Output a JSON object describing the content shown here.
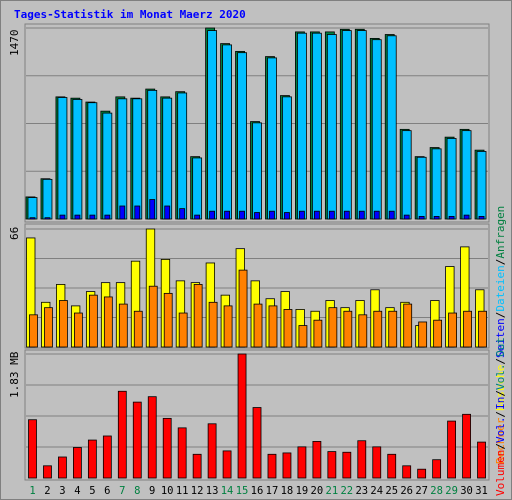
{
  "title": "Tages-Statistik im Monat Maerz 2020",
  "colors": {
    "anfragen": "#008040",
    "dateien": "#00c0ff",
    "seiten": "#0000ff",
    "besuche": "#ffff00",
    "rechner": "#ff8000",
    "volumen": "#ff0000",
    "vol_in": "#0000ff",
    "vol_out": "#008080",
    "weekend_label": "#008040",
    "weekday_label": "#000000"
  },
  "chart_data": [
    {
      "type": "bar",
      "panel": "requests",
      "y_tick_label": "1470",
      "ylim": [
        0,
        1470
      ],
      "x": [
        "1",
        "2",
        "3",
        "4",
        "5",
        "6",
        "7",
        "8",
        "9",
        "10",
        "11",
        "12",
        "13",
        "14",
        "15",
        "16",
        "17",
        "18",
        "19",
        "20",
        "21",
        "22",
        "23",
        "24",
        "25",
        "26",
        "27",
        "28",
        "29",
        "30",
        "31"
      ],
      "weekend_days": [
        1,
        7,
        8,
        14,
        15,
        21,
        22,
        28,
        29
      ],
      "side_labels": [
        "Anfragen",
        "/",
        "Dateien",
        "/",
        "Seiten",
        "/",
        "Besuche",
        "/",
        "Rechner"
      ],
      "series": [
        {
          "name": "Anfragen",
          "values": [
            170,
            310,
            940,
            930,
            900,
            830,
            940,
            930,
            1000,
            940,
            980,
            480,
            1470,
            1350,
            1290,
            750,
            1250,
            950,
            1440,
            1440,
            1440,
            1460,
            1460,
            1390,
            1420,
            690,
            480,
            550,
            630,
            690,
            530
          ]
        },
        {
          "name": "Dateien",
          "values": [
            165,
            305,
            935,
            920,
            895,
            815,
            925,
            925,
            990,
            930,
            970,
            470,
            1450,
            1340,
            1280,
            740,
            1240,
            940,
            1430,
            1430,
            1420,
            1450,
            1450,
            1380,
            1410,
            680,
            475,
            540,
            620,
            680,
            520
          ]
        },
        {
          "name": "Seiten",
          "values": [
            10,
            10,
            30,
            30,
            30,
            30,
            100,
            100,
            150,
            100,
            80,
            30,
            60,
            60,
            60,
            50,
            60,
            50,
            60,
            60,
            60,
            60,
            60,
            60,
            60,
            30,
            20,
            20,
            20,
            30,
            20
          ]
        }
      ]
    },
    {
      "type": "bar",
      "panel": "visits",
      "y_tick_label": "66",
      "ylim": [
        0,
        66
      ],
      "x": [
        "1",
        "2",
        "3",
        "4",
        "5",
        "6",
        "7",
        "8",
        "9",
        "10",
        "11",
        "12",
        "13",
        "14",
        "15",
        "16",
        "17",
        "18",
        "19",
        "20",
        "21",
        "22",
        "23",
        "24",
        "25",
        "26",
        "27",
        "28",
        "29",
        "30",
        "31"
      ],
      "series": [
        {
          "name": "Besuche",
          "values": [
            61,
            25,
            35,
            23,
            31,
            36,
            36,
            48,
            66,
            49,
            37,
            36,
            47,
            29,
            55,
            37,
            27,
            31,
            21,
            20,
            26,
            22,
            26,
            32,
            22,
            25,
            12,
            26,
            45,
            56,
            32
          ]
        },
        {
          "name": "Rechner",
          "values": [
            18,
            22,
            26,
            19,
            29,
            28,
            24,
            20,
            34,
            30,
            19,
            35,
            25,
            23,
            43,
            24,
            23,
            21,
            12,
            15,
            22,
            20,
            18,
            20,
            20,
            24,
            14,
            15,
            19,
            20,
            20
          ]
        }
      ]
    },
    {
      "type": "bar",
      "panel": "volume",
      "y_tick_label": "1.83 MB",
      "ylim": [
        0,
        1.83
      ],
      "x": [
        "1",
        "2",
        "3",
        "4",
        "5",
        "6",
        "7",
        "8",
        "9",
        "10",
        "11",
        "12",
        "13",
        "14",
        "15",
        "16",
        "17",
        "18",
        "19",
        "20",
        "21",
        "22",
        "23",
        "24",
        "25",
        "26",
        "27",
        "28",
        "29",
        "30",
        "31"
      ],
      "side_labels": [
        "Volumen",
        "/",
        "Vol. In",
        "/",
        "Vol. Out"
      ],
      "series": [
        {
          "name": "Volumen",
          "values": [
            0.86,
            0.18,
            0.31,
            0.45,
            0.56,
            0.62,
            1.28,
            1.12,
            1.2,
            0.88,
            0.74,
            0.35,
            0.8,
            0.4,
            1.83,
            1.04,
            0.35,
            0.37,
            0.46,
            0.54,
            0.39,
            0.38,
            0.55,
            0.46,
            0.35,
            0.18,
            0.13,
            0.27,
            0.84,
            0.94,
            0.53
          ]
        }
      ]
    }
  ]
}
